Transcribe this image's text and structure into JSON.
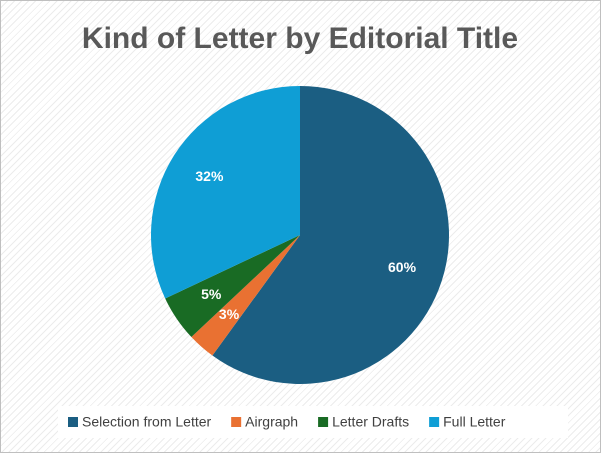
{
  "chart_data": {
    "type": "pie",
    "title": "Kind of Letter by Editorial Title",
    "categories": [
      "Selection from Letter",
      "Airgraph",
      "Letter Drafts",
      "Full Letter"
    ],
    "values": [
      60,
      3,
      5,
      32
    ],
    "value_labels": [
      "60%",
      "3%",
      "5%",
      "32%"
    ],
    "colors": [
      "#1b5e82",
      "#e97132",
      "#196b24",
      "#0f9ed5"
    ],
    "legend": "bottom"
  }
}
